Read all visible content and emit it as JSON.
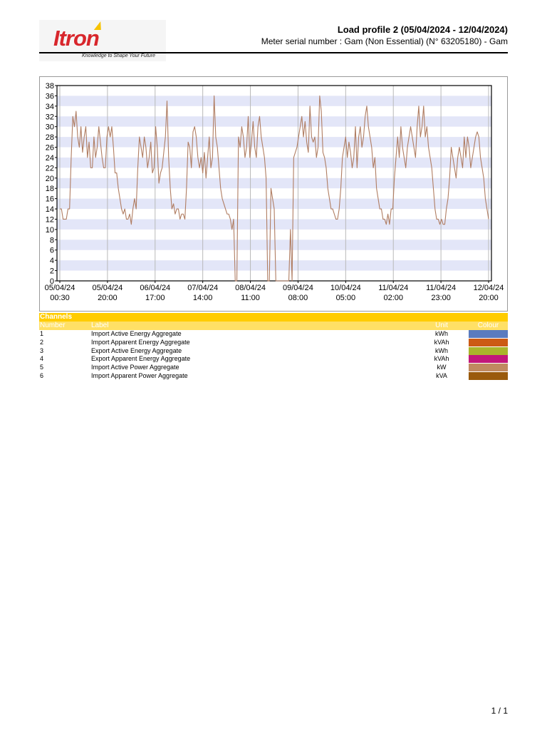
{
  "header": {
    "logo_text": "Itron",
    "logo_tagline": "Knowledge to Shape Your Future",
    "title": "Load profile 2 (05/04/2024 - 12/04/2024)",
    "subtitle": "Meter serial number : Gam (Non Essential) (N° 63205180) - Gam"
  },
  "chart_data": {
    "type": "line",
    "title": "",
    "xlabel": "",
    "ylabel": "",
    "ylim": [
      0,
      38
    ],
    "yticks": [
      "38",
      "36",
      "34",
      "32",
      "30",
      "28",
      "26",
      "24",
      "22",
      "20",
      "18",
      "16",
      "14",
      "12",
      "10",
      "8",
      "6",
      "4",
      "2",
      "0"
    ],
    "xtick_labels": [
      {
        "date": "05/04/24",
        "time": "00:30"
      },
      {
        "date": "05/04/24",
        "time": "20:00"
      },
      {
        "date": "06/04/24",
        "time": "17:00"
      },
      {
        "date": "07/04/24",
        "time": "14:00"
      },
      {
        "date": "08/04/24",
        "time": "11:00"
      },
      {
        "date": "09/04/24",
        "time": "08:00"
      },
      {
        "date": "10/04/24",
        "time": "05:00"
      },
      {
        "date": "11/04/24",
        "time": "02:00"
      },
      {
        "date": "11/04/24",
        "time": "23:00"
      },
      {
        "date": "12/04/24",
        "time": "20:00"
      }
    ],
    "grid": "horizontal bands and vertical lines",
    "series": [
      {
        "color": "#b07d62",
        "x_start": "05/04/24 00:30",
        "x_step_hours": 1,
        "values": [
          14,
          14,
          12,
          12,
          12,
          14,
          14,
          24,
          32,
          30,
          33,
          28,
          26,
          30,
          25,
          28,
          30,
          24,
          27,
          22,
          22,
          28,
          24,
          26,
          30,
          27,
          24,
          22,
          22,
          28,
          30,
          28,
          30,
          26,
          21,
          21,
          18,
          16,
          14,
          13,
          14,
          12,
          12,
          13,
          11,
          14,
          16,
          14,
          22,
          28,
          26,
          24,
          28,
          26,
          22,
          24,
          27,
          21,
          22,
          30,
          26,
          19,
          21,
          22,
          25,
          28,
          35,
          24,
          18,
          14,
          15,
          13,
          14,
          14,
          12,
          13,
          13,
          12,
          18,
          27,
          26,
          22,
          29,
          30,
          28,
          24,
          22,
          24,
          21,
          25,
          20,
          24,
          28,
          22,
          24,
          36,
          28,
          26,
          22,
          18,
          16,
          15,
          14,
          13,
          13,
          12,
          10,
          12,
          0,
          0,
          28,
          26,
          30,
          28,
          24,
          26,
          32,
          24,
          27,
          31,
          26,
          24,
          30,
          32,
          28,
          26,
          24,
          20,
          0,
          0,
          18,
          16,
          14,
          0,
          0,
          0,
          0,
          0,
          0,
          0,
          0,
          0,
          10,
          0,
          24,
          25,
          26,
          28,
          30,
          32,
          28,
          31,
          27,
          25,
          34,
          28,
          27,
          28,
          24,
          26,
          36,
          33,
          25,
          24,
          22,
          18,
          16,
          14,
          14,
          13,
          12,
          12,
          14,
          18,
          24,
          26,
          28,
          24,
          27,
          25,
          22,
          24,
          30,
          22,
          28,
          30,
          26,
          28,
          32,
          34,
          30,
          28,
          26,
          22,
          24,
          18,
          16,
          14,
          14,
          12,
          12,
          11,
          13,
          11,
          14,
          14,
          20,
          24,
          28,
          24,
          30,
          26,
          24,
          22,
          26,
          28,
          30,
          28,
          26,
          24,
          30,
          34,
          28,
          30,
          34,
          28,
          30,
          26,
          24,
          22,
          18,
          14,
          12,
          12,
          11,
          12,
          11,
          11,
          14,
          16,
          20,
          26,
          24,
          22,
          20,
          24,
          26,
          24,
          22,
          28,
          24,
          28,
          26,
          22,
          24,
          26,
          28,
          29,
          28,
          24,
          22,
          20,
          16,
          14,
          12
        ]
      }
    ]
  },
  "channels": {
    "title": "Channels",
    "header": {
      "number": "Number",
      "label": "Label",
      "unit": "Unit",
      "colour": "Colour"
    },
    "rows": [
      {
        "number": "1",
        "label": "Import Active Energy Aggregate",
        "unit": "kWh",
        "color": "#5a7bbf"
      },
      {
        "number": "2",
        "label": "Import Apparent Energy Aggregate",
        "unit": "kVAh",
        "color": "#cc5a14"
      },
      {
        "number": "3",
        "label": "Export Active Energy Aggregate",
        "unit": "kWh",
        "color": "#aab52a"
      },
      {
        "number": "4",
        "label": "Export Apparent Energy Aggregate",
        "unit": "kVAh",
        "color": "#c2187a"
      },
      {
        "number": "5",
        "label": "Import Active Power Aggregate",
        "unit": "kW",
        "color": "#c08a60"
      },
      {
        "number": "6",
        "label": "Import Apparent Power Aggregate",
        "unit": "kVA",
        "color": "#9a5a0c"
      }
    ]
  },
  "footer": {
    "page": "1 / 1"
  }
}
